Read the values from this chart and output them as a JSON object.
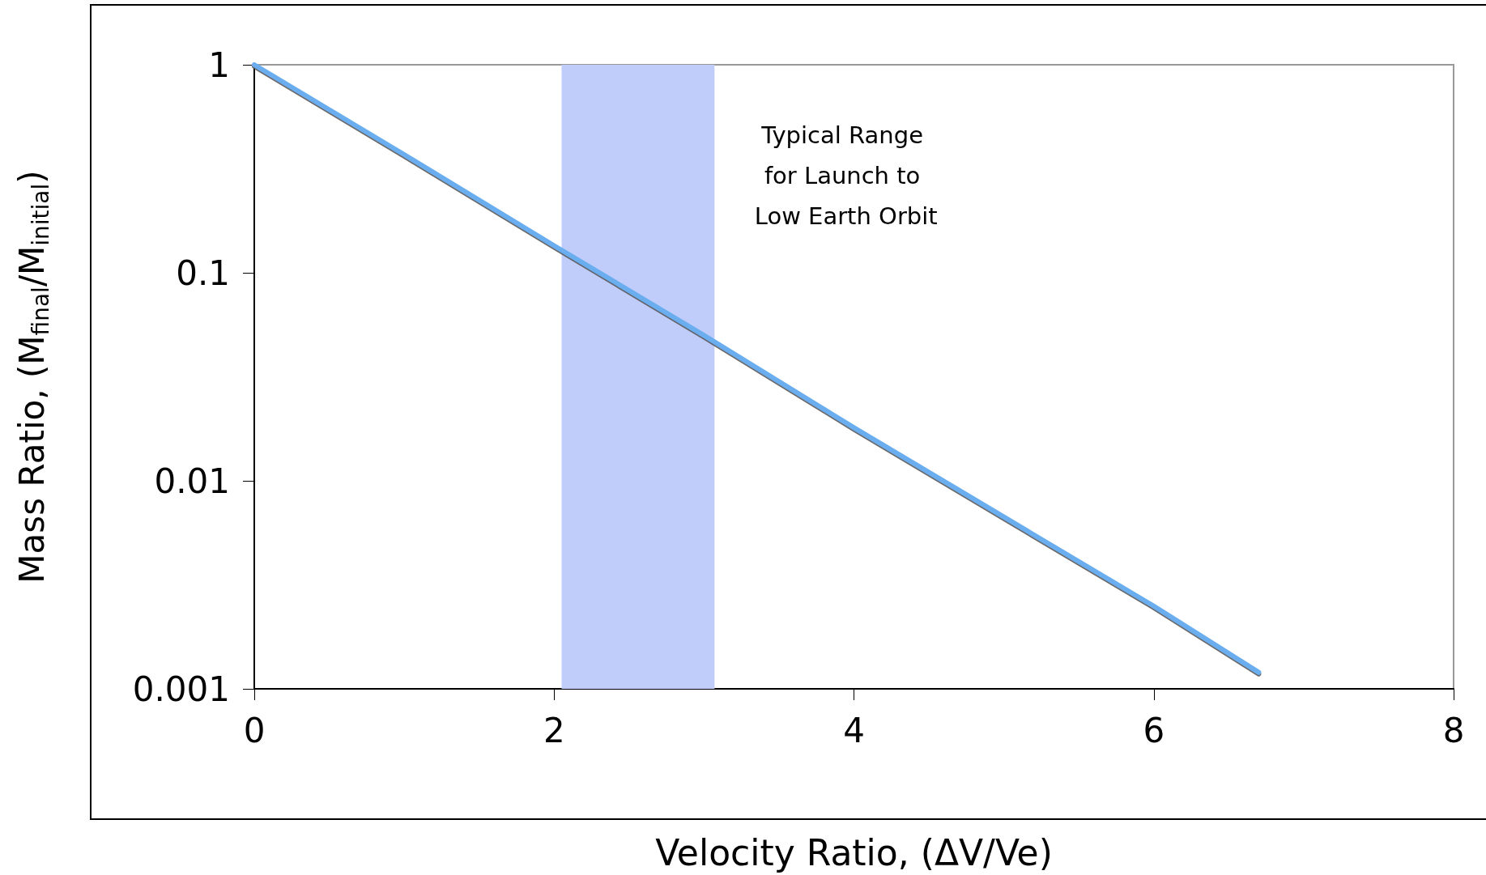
{
  "chart_data": {
    "type": "line",
    "xlabel": "Velocity Ratio, (ΔV/Ve)",
    "ylabel": "Mass Ratio, (M$_{final}$/M$_{initial}$)",
    "x": [
      0,
      1,
      2,
      3,
      4,
      5,
      6,
      6.7
    ],
    "series": [
      {
        "color": "#6aaef0",
        "values": [
          1,
          0.37,
          0.135,
          0.05,
          0.018,
          0.0067,
          0.0025,
          0.0012
        ]
      }
    ],
    "xlim": [
      0,
      8
    ],
    "xticks": [
      0,
      2,
      4,
      6,
      8
    ],
    "ylim": [
      0.001,
      1
    ],
    "yticks": [
      0.001,
      0.01,
      0.1,
      1
    ],
    "log": "y",
    "grid": false,
    "marker": "none",
    "line_style": "solid",
    "bands": [
      {
        "axis": "x",
        "from": 2.05,
        "to": 3.07,
        "label": "Typical Range for Launch to Low Earth Orbit",
        "color": "#c0ccfa"
      }
    ]
  }
}
